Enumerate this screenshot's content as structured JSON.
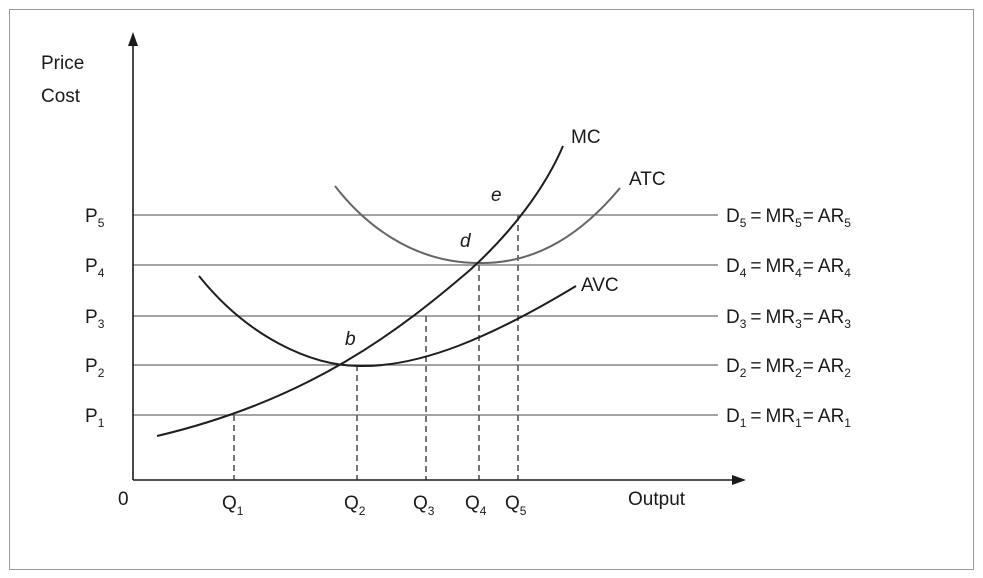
{
  "axes": {
    "y_label_line1": "Price",
    "y_label_line2": "Cost",
    "x_label": "Output",
    "origin": "0"
  },
  "curves": {
    "mc": "MC",
    "atc": "ATC",
    "avc": "AVC"
  },
  "price_levels": [
    {
      "p": "P",
      "p_sub": "1",
      "d": "D",
      "d_sub": "1",
      "mr": "MR",
      "mr_sub": "1",
      "ar": "AR",
      "ar_sub": "1"
    },
    {
      "p": "P",
      "p_sub": "2",
      "d": "D",
      "d_sub": "2",
      "mr": "MR",
      "mr_sub": "2",
      "ar": "AR",
      "ar_sub": "2"
    },
    {
      "p": "P",
      "p_sub": "3",
      "d": "D",
      "d_sub": "3",
      "mr": "MR",
      "mr_sub": "3",
      "ar": "AR",
      "ar_sub": "3"
    },
    {
      "p": "P",
      "p_sub": "4",
      "d": "D",
      "d_sub": "4",
      "mr": "MR",
      "mr_sub": "4",
      "ar": "AR",
      "ar_sub": "4"
    },
    {
      "p": "P",
      "p_sub": "5",
      "d": "D",
      "d_sub": "5",
      "mr": "MR",
      "mr_sub": "5",
      "ar": "AR",
      "ar_sub": "5"
    }
  ],
  "quantities": [
    {
      "q": "Q",
      "sub": "1"
    },
    {
      "q": "Q",
      "sub": "2"
    },
    {
      "q": "Q",
      "sub": "3"
    },
    {
      "q": "Q",
      "sub": "4"
    },
    {
      "q": "Q",
      "sub": "5"
    }
  ],
  "points": {
    "b": "b",
    "d": "d",
    "e": "e"
  },
  "equals": "="
}
